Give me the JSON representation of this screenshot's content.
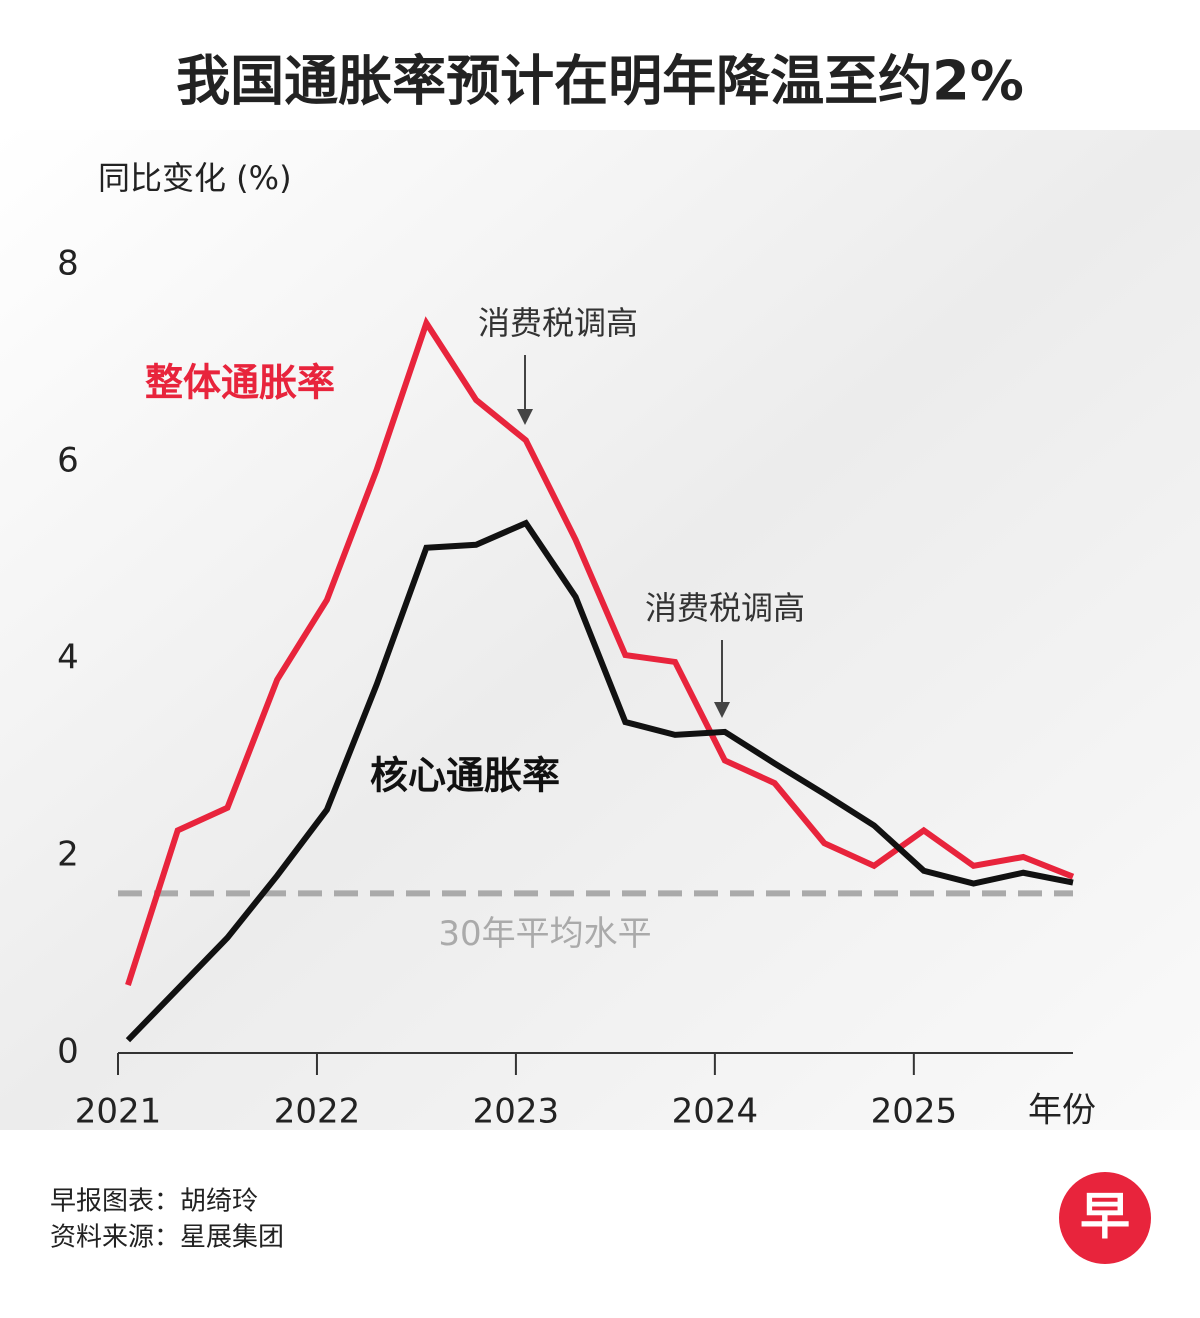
{
  "chart_data": {
    "type": "line",
    "title": "我国通胀率预计在明年降温至约2%",
    "y_label": "同比变化 (%)",
    "x_label": "年份",
    "x": [
      2021.05,
      2021.3,
      2021.55,
      2021.8,
      2022.05,
      2022.3,
      2022.55,
      2022.8,
      2023.05,
      2023.3,
      2023.55,
      2023.8,
      2024.05,
      2024.3,
      2024.55,
      2024.8,
      2025.05,
      2025.3,
      2025.55,
      2025.8
    ],
    "series": [
      {
        "name": "整体通胀率",
        "color": "#e8243c",
        "values": [
          0.69,
          2.26,
          2.49,
          3.79,
          4.6,
          5.92,
          7.41,
          6.63,
          6.22,
          5.21,
          4.04,
          3.97,
          2.97,
          2.74,
          2.13,
          1.9,
          2.26,
          1.9,
          1.99,
          1.79
        ]
      },
      {
        "name": "核心通胀率",
        "color": "#111111",
        "values": [
          0.13,
          0.65,
          1.17,
          1.8,
          2.47,
          3.74,
          5.13,
          5.16,
          5.38,
          4.63,
          3.36,
          3.23,
          3.26,
          2.94,
          2.63,
          2.31,
          1.85,
          1.72,
          1.83,
          1.73
        ]
      }
    ],
    "reference_line": {
      "value": 1.62,
      "label": "30年平均水平",
      "color": "#aaaaaa"
    },
    "annotations": [
      "消费税调高",
      "消费税调高"
    ],
    "xlim": [
      2021,
      2025.8
    ],
    "xticks": [
      2021,
      2022,
      2023,
      2024,
      2025
    ],
    "ylim": [
      0,
      8
    ],
    "yticks": [
      0,
      2,
      4,
      6,
      8
    ],
    "credit": "早报图表：胡绮玲",
    "source": "资料来源：星展集团",
    "logo": "早"
  }
}
